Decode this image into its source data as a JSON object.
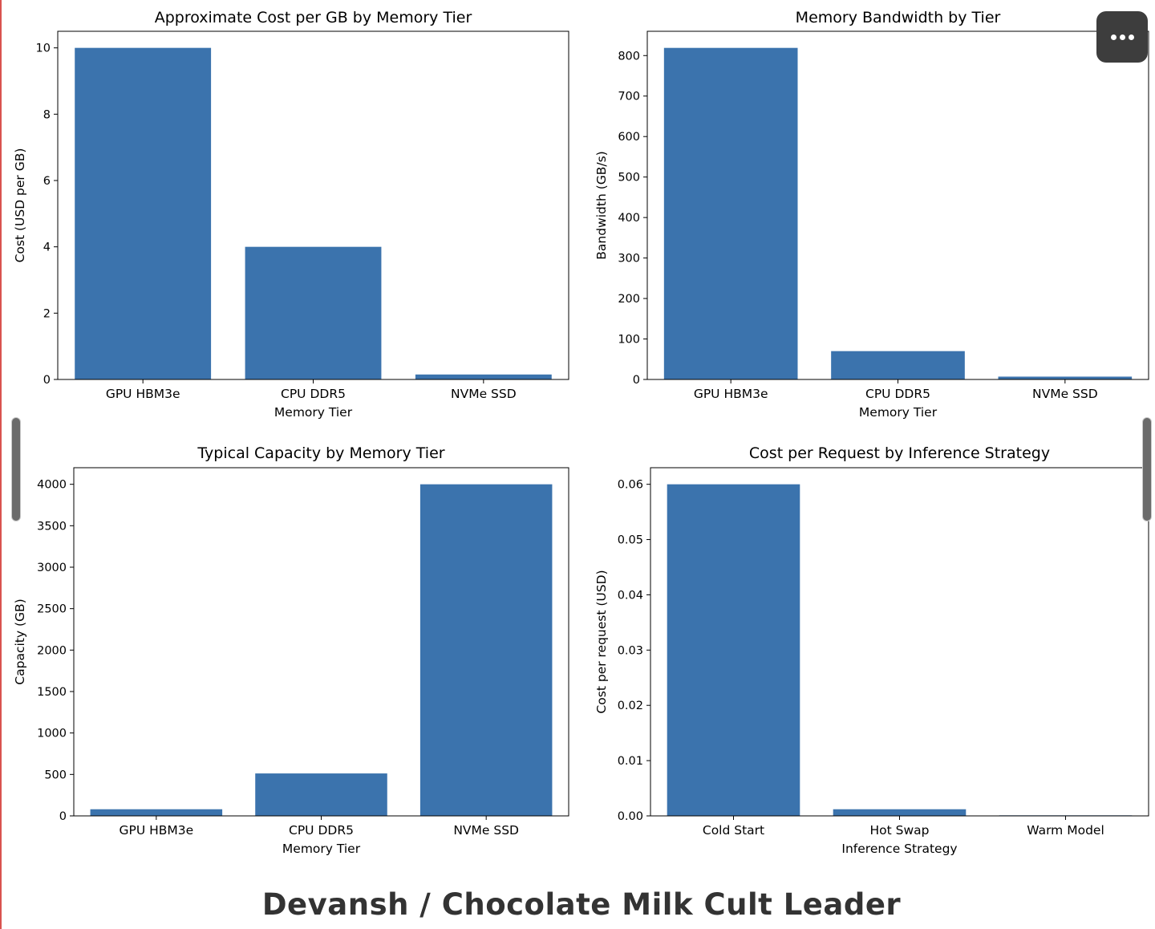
{
  "chart_data": [
    {
      "type": "bar",
      "title": "Approximate Cost per GB by Memory Tier",
      "xlabel": "Memory Tier",
      "ylabel": "Cost (USD per GB)",
      "categories": [
        "GPU HBM3e",
        "CPU DDR5",
        "NVMe SSD"
      ],
      "values": [
        10,
        4,
        0.15
      ],
      "ylim": [
        0,
        10.5
      ],
      "yticks": [
        0,
        2,
        4,
        6,
        8,
        10
      ],
      "ytick_labels": [
        "0",
        "2",
        "4",
        "6",
        "8",
        "10"
      ],
      "color": "#3b73ad"
    },
    {
      "type": "bar",
      "title": "Memory Bandwidth by Tier",
      "xlabel": "Memory Tier",
      "ylabel": "Bandwidth (GB/s)",
      "categories": [
        "GPU HBM3e",
        "CPU DDR5",
        "NVMe SSD"
      ],
      "values": [
        819,
        70,
        7
      ],
      "ylim": [
        0,
        860
      ],
      "yticks": [
        0,
        100,
        200,
        300,
        400,
        500,
        600,
        700,
        800
      ],
      "ytick_labels": [
        "0",
        "100",
        "200",
        "300",
        "400",
        "500",
        "600",
        "700",
        "800"
      ],
      "color": "#3b73ad"
    },
    {
      "type": "bar",
      "title": "Typical Capacity by Memory Tier",
      "xlabel": "Memory Tier",
      "ylabel": "Capacity (GB)",
      "categories": [
        "GPU HBM3e",
        "CPU DDR5",
        "NVMe SSD"
      ],
      "values": [
        80,
        512,
        4000
      ],
      "ylim": [
        0,
        4200
      ],
      "yticks": [
        0,
        500,
        1000,
        1500,
        2000,
        2500,
        3000,
        3500,
        4000
      ],
      "ytick_labels": [
        "0",
        "500",
        "1000",
        "1500",
        "2000",
        "2500",
        "3000",
        "3500",
        "4000"
      ],
      "color": "#3b73ad"
    },
    {
      "type": "bar",
      "title": "Cost per Request by Inference Strategy",
      "xlabel": "Inference Strategy",
      "ylabel": "Cost per request (USD)",
      "categories": [
        "Cold Start",
        "Hot Swap",
        "Warm Model"
      ],
      "values": [
        0.06,
        0.0012,
        0.0001
      ],
      "ylim": [
        0,
        0.063
      ],
      "yticks": [
        0,
        0.01,
        0.02,
        0.03,
        0.04,
        0.05,
        0.06
      ],
      "ytick_labels": [
        "0.00",
        "0.01",
        "0.02",
        "0.03",
        "0.04",
        "0.05",
        "0.06"
      ],
      "color": "#3b73ad"
    }
  ],
  "footer": {
    "credit": "Devansh / Chocolate Milk Cult Leader"
  },
  "controls": {
    "more_icon": "more-horizontal-icon"
  }
}
